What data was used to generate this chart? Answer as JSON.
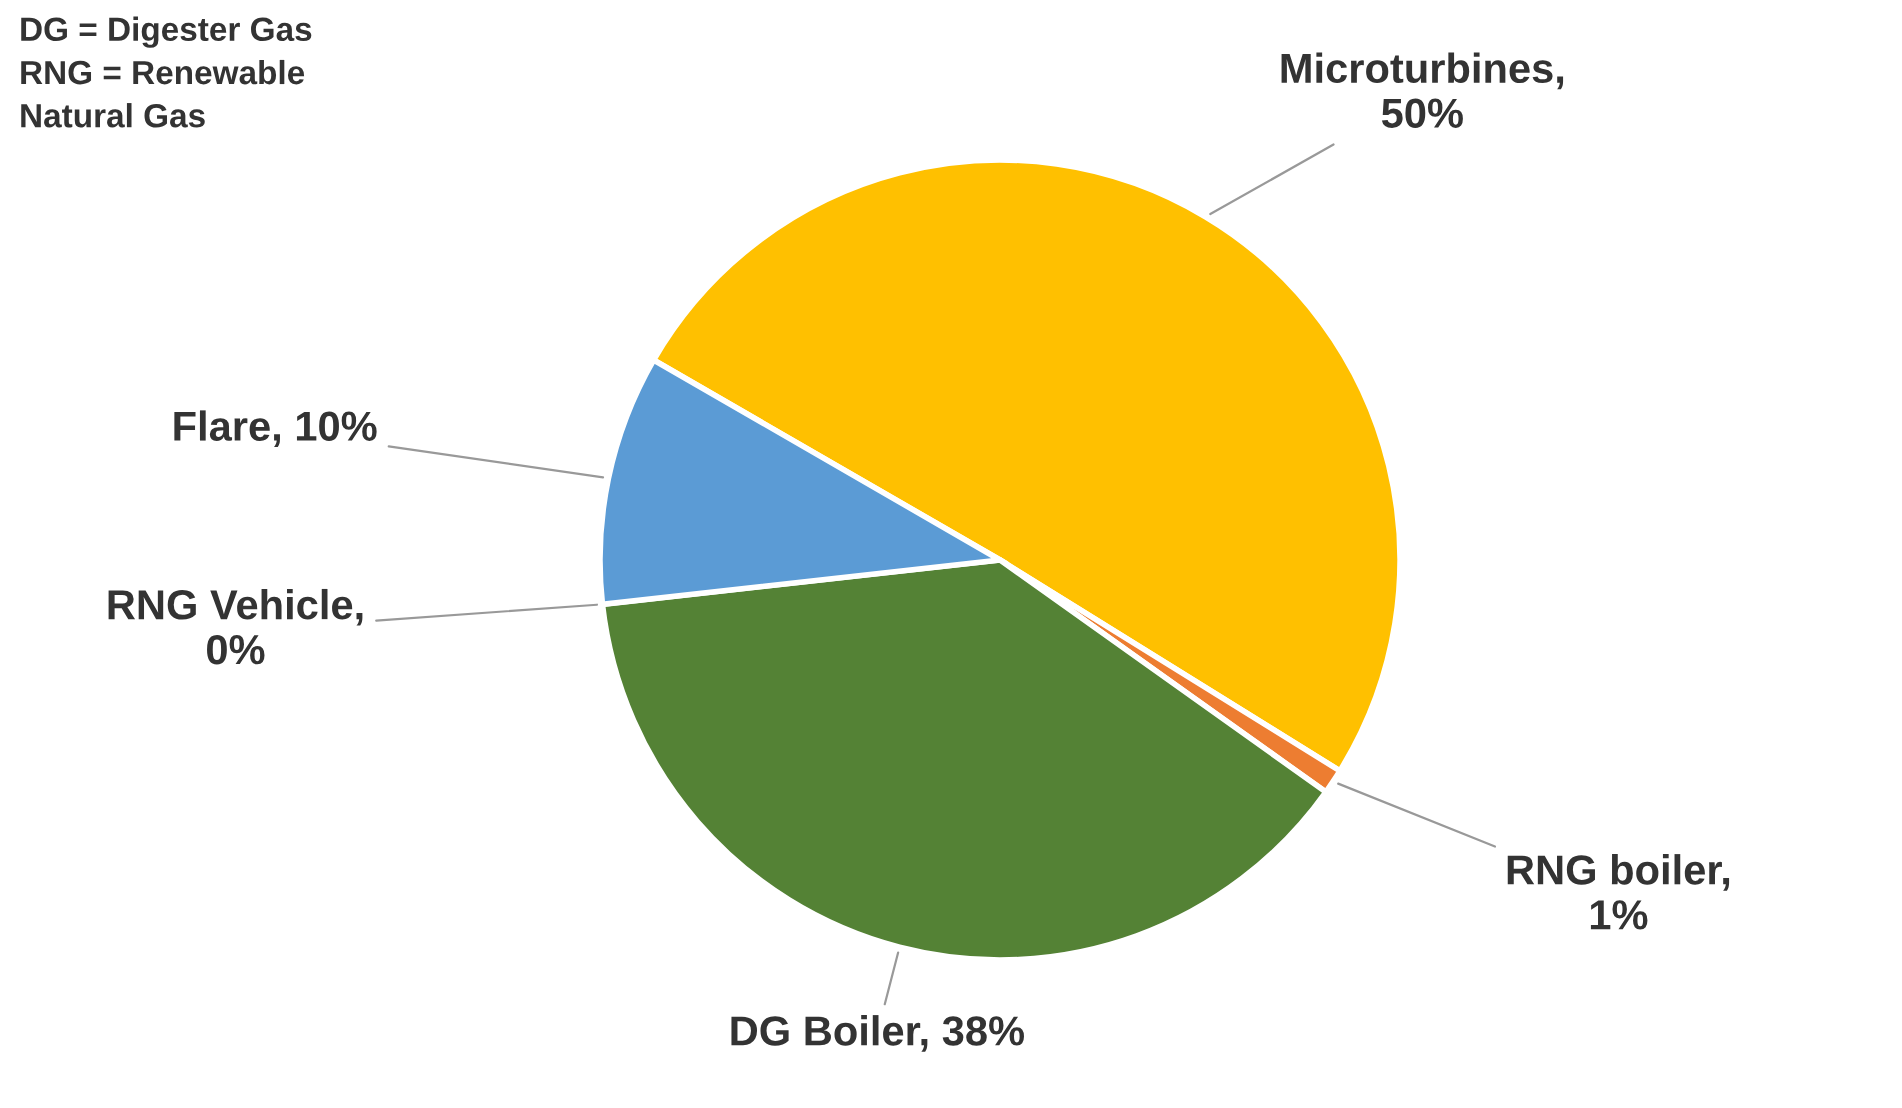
{
  "chart_data": {
    "type": "pie",
    "categories": [
      "Microturbines",
      "RNG boiler",
      "DG Boiler",
      "RNG Vehicle",
      "Flare"
    ],
    "values": [
      50,
      1,
      38,
      0,
      10
    ],
    "colors": [
      "#ffc000",
      "#ed7d31",
      "#548235",
      "#a5a5a5",
      "#5b9bd5"
    ],
    "value_labels": [
      ",\n50%",
      ",\n1%",
      ", 38%",
      ",\n0%",
      ", 10%"
    ],
    "annotations": [
      "DG = Digester Gas\nRNG = Renewable\nNatural Gas"
    ],
    "legend": false
  }
}
